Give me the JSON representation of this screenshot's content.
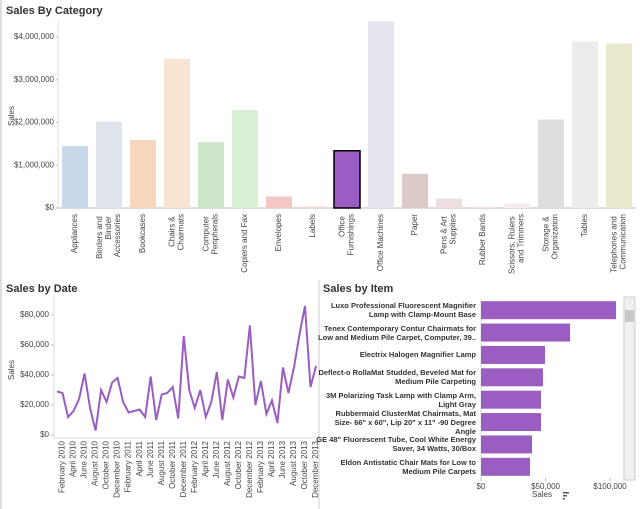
{
  "chart_data": [
    {
      "type": "bar",
      "title": "Sales By Category",
      "y_label": "Sales",
      "categories": [
        "Appliances",
        "Binders and Binder Accessories",
        "Bookcases",
        "Chairs & Chairmats",
        "Computer Peripherals",
        "Copiers and Fax",
        "Envelopes",
        "Labels",
        "Office Furnishings",
        "Office Machines",
        "Paper",
        "Pens & Art Supplies",
        "Rubber Bands",
        "Scissors, Rulers and Trimmers",
        "Storage & Organization",
        "Tables",
        "Telephones and Communication"
      ],
      "values": [
        1450000,
        2020000,
        1590000,
        3490000,
        1540000,
        2290000,
        270000,
        40000,
        1340000,
        4370000,
        800000,
        220000,
        30000,
        100000,
        2070000,
        3900000,
        3850000
      ],
      "colors": [
        "#c9d9e9",
        "#dfe4ea",
        "#f6d6bd",
        "#f9e4d2",
        "#cde6c9",
        "#d9efd5",
        "#f6c7c7",
        "#f4dcdc",
        "#9a5dc2",
        "#e7e3ef",
        "#dbcac7",
        "#eddfdf",
        "#f3e1ea",
        "#f6e9f0",
        "#dedede",
        "#ececec",
        "#eae8cd"
      ],
      "selected_index": 8,
      "ylim": [
        0,
        4400000
      ],
      "yticks": [
        {
          "value": 0,
          "label": "$0"
        },
        {
          "value": 1000000,
          "label": "$1,000,000"
        },
        {
          "value": 2000000,
          "label": "$2,000,000"
        },
        {
          "value": 3000000,
          "label": "$3,000,000"
        },
        {
          "value": 4000000,
          "label": "$4,000,000"
        }
      ]
    },
    {
      "type": "line",
      "title": "Sales by Date",
      "y_label": "Sales",
      "color": "#9a5dc2",
      "categories": [
        null,
        "February 2010",
        null,
        "April 2010",
        null,
        "June 2010",
        null,
        "August 2010",
        null,
        "October 2010",
        null,
        "December 2010",
        null,
        "February 2011",
        null,
        "April 2011",
        null,
        "June 2011",
        null,
        "August 2011",
        null,
        "October 2011",
        null,
        "December 2011",
        null,
        "February 2012",
        null,
        "April 2012",
        null,
        "June 2012",
        null,
        "August 2012",
        null,
        "October 2012",
        null,
        "December 2012",
        null,
        "February 2013",
        null,
        "April 2013",
        null,
        "June 2013",
        null,
        "August 2013",
        null,
        "October 2013",
        null,
        "December 2013"
      ],
      "values": [
        29000,
        28000,
        12000,
        16000,
        24000,
        41000,
        18000,
        3000,
        30000,
        22000,
        35000,
        38000,
        22000,
        15000,
        16000,
        17000,
        12000,
        39000,
        10000,
        27000,
        28000,
        32000,
        11000,
        66000,
        30000,
        18000,
        30000,
        12000,
        22000,
        42000,
        10000,
        37000,
        25000,
        39000,
        38000,
        73000,
        20000,
        36000,
        14000,
        23000,
        8000,
        45000,
        28000,
        45000,
        67000,
        86000,
        32000,
        46000
      ],
      "ylim": [
        0,
        88000
      ],
      "yticks": [
        {
          "value": 0,
          "label": "$0"
        },
        {
          "value": 20000,
          "label": "$20,000"
        },
        {
          "value": 40000,
          "label": "$40,000"
        },
        {
          "value": 60000,
          "label": "$60,000"
        },
        {
          "value": 80000,
          "label": "$80,000"
        }
      ]
    },
    {
      "type": "hbar",
      "title": "Sales by Item",
      "x_label": "Sales",
      "color": "#9a5dc2",
      "categories": [
        "Luxo Professional Fluorescent Magnifier Lamp with Clamp-Mount Base",
        "Tenex Contemporary Contur Chairmats for Low and Medium Pile Carpet, Computer, 39..",
        "Electrix Halogen Magnifier Lamp",
        "Deflect-o RollaMat Studded, Beveled Mat for Medium Pile Carpeting",
        "3M Polarizing Task Lamp with Clamp Arm, Light Gray",
        "Rubbermaid ClusterMat Chairmats, Mat Size- 66\" x 60\", Lip 20\" x 11\" -90 Degree Angle",
        "GE 48\" Fluorescent Tube, Cool White Energy Saver, 34 Watts, 30/Box",
        "Eldon Antistatic Chair Mats for Low to Medium Pile Carpets"
      ],
      "values": [
        104600,
        69000,
        49600,
        48000,
        46500,
        46500,
        39500,
        38000
      ],
      "xlim": [
        0,
        110000
      ],
      "xticks": [
        {
          "value": 0,
          "label": "$0"
        },
        {
          "value": 50000,
          "label": "$50,000"
        },
        {
          "value": 100000,
          "label": "$100,000"
        }
      ]
    }
  ]
}
